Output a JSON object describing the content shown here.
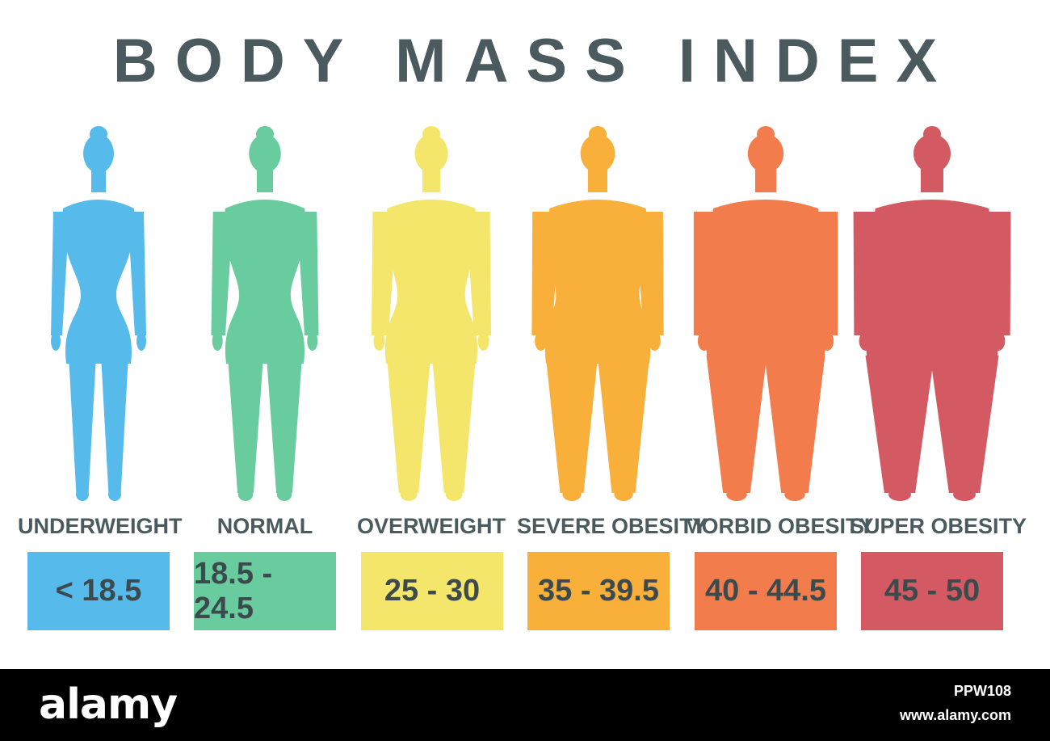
{
  "title": "BODY MASS INDEX",
  "categories": [
    {
      "label": "UNDERWEIGHT",
      "range": "< 18.5",
      "color": "#56bbea",
      "build": 0
    },
    {
      "label": "NORMAL",
      "range": "18.5 - 24.5",
      "color": "#68cc9e",
      "build": 1
    },
    {
      "label": "OVERWEIGHT",
      "range": "25 - 30",
      "color": "#f4e66b",
      "build": 2
    },
    {
      "label": "SEVERE OBESITY",
      "range": "35 - 39.5",
      "color": "#f9b03b",
      "build": 3
    },
    {
      "label": "MORBID OBESITY",
      "range": "40 - 44.5",
      "color": "#f37c4d",
      "build": 4
    },
    {
      "label": "SUPER OBESITY",
      "range": "45 - 50",
      "color": "#d35a62",
      "build": 5
    }
  ],
  "footer": {
    "brand": "alamy",
    "image_id": "PPW108",
    "site": "www.alamy.com"
  }
}
